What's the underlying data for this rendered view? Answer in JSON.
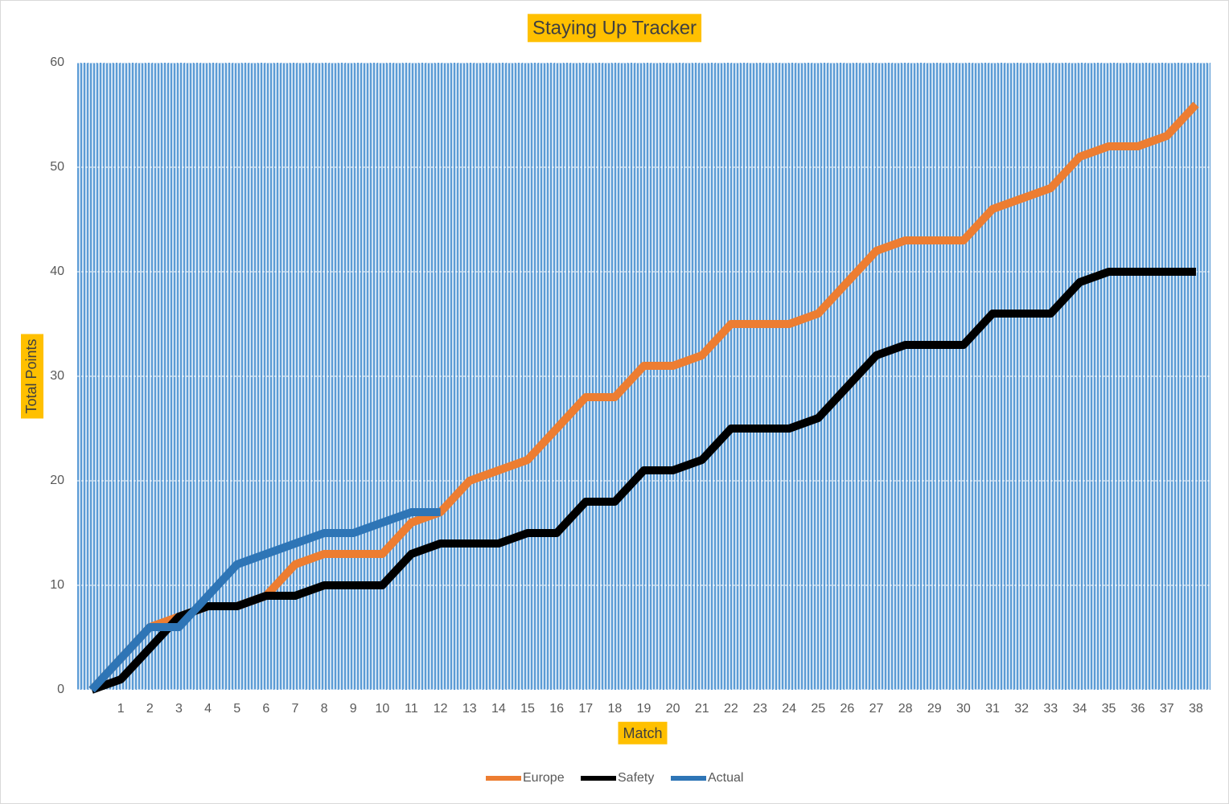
{
  "chart_data": {
    "type": "line",
    "title": "Staying Up Tracker",
    "x_label": "Match",
    "y_label": "Total Points",
    "categories": [
      null,
      "1",
      "2",
      "3",
      "4",
      "5",
      "6",
      "7",
      "8",
      "9",
      "10",
      "11",
      "12",
      "13",
      "14",
      "15",
      "16",
      "17",
      "18",
      "19",
      "20",
      "21",
      "22",
      "23",
      "24",
      "25",
      "26",
      "27",
      "28",
      "29",
      "30",
      "31",
      "32",
      "33",
      "34",
      "35",
      "36",
      "37",
      "38"
    ],
    "series": [
      {
        "name": "Europe",
        "color": "#ed7d31",
        "values": [
          0,
          3,
          6,
          7,
          8,
          8,
          9,
          12,
          13,
          13,
          13,
          16,
          17,
          20,
          21,
          22,
          25,
          28,
          28,
          31,
          31,
          32,
          35,
          35,
          35,
          36,
          39,
          42,
          43,
          43,
          43,
          46,
          47,
          48,
          51,
          52,
          52,
          53,
          56
        ]
      },
      {
        "name": "Safety",
        "color": "#000000",
        "values": [
          0,
          1,
          4,
          7,
          8,
          8,
          9,
          9,
          10,
          10,
          10,
          13,
          14,
          14,
          14,
          15,
          15,
          18,
          18,
          21,
          21,
          22,
          25,
          25,
          25,
          26,
          29,
          32,
          33,
          33,
          33,
          36,
          36,
          36,
          39,
          40,
          40,
          40,
          40
        ]
      },
      {
        "name": "Actual",
        "color": "#2e75b6",
        "values": [
          0,
          3,
          6,
          6,
          9,
          12,
          13,
          14,
          15,
          15,
          16,
          17,
          17,
          null,
          null,
          null,
          null,
          null,
          null,
          null,
          null,
          null,
          null,
          null,
          null,
          null,
          null,
          null,
          null,
          null,
          null,
          null,
          null,
          null,
          null,
          null,
          null,
          null,
          null
        ]
      }
    ],
    "ylim": [
      0,
      60
    ],
    "yticks": [
      0,
      10,
      20,
      30,
      40,
      50,
      60
    ],
    "grid": true,
    "legend": "bottom"
  }
}
